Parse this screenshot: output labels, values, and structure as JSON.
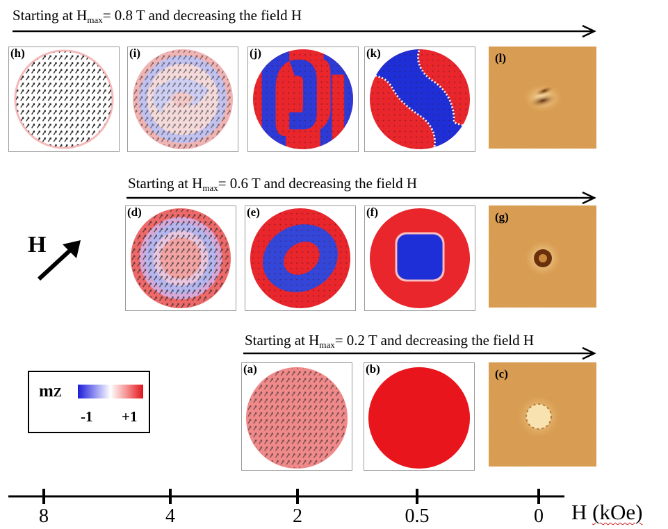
{
  "rows": [
    {
      "caption_pre": "Starting at H",
      "caption_sub": "max",
      "caption_post": "= 0.8 T and decreasing  the field H"
    },
    {
      "caption_pre": "Starting at H",
      "caption_sub": "max",
      "caption_post": "= 0.6 T and decreasing  the field H"
    },
    {
      "caption_pre": "Starting at H",
      "caption_sub": "max",
      "caption_post": "= 0.2 T and decreasing  the field H"
    }
  ],
  "panels": {
    "h": {
      "label": "(h)",
      "pattern": "saturated-inplane",
      "colors": [
        "#ffffff",
        "#f6b8b8"
      ]
    },
    "i": {
      "label": "(i)",
      "pattern": "spiral-pale",
      "colors": [
        "#c8c8f2",
        "#f2c6c6",
        "#ffffff"
      ]
    },
    "j": {
      "label": "(j)",
      "pattern": "s-stripe",
      "colors": [
        "#e8262c",
        "#2e3ad6"
      ]
    },
    "k": {
      "label": "(k)",
      "pattern": "wavy-band",
      "colors": [
        "#e8262c",
        "#1f2fd8"
      ]
    },
    "l": {
      "label": "(l)",
      "pattern": "mfm-photo-stripe"
    },
    "d": {
      "label": "(d)",
      "pattern": "concentric-pale",
      "colors": [
        "#ee6a6a",
        "#b6b6ee",
        "#f2a4a4"
      ]
    },
    "e": {
      "label": "(e)",
      "pattern": "concentric-ring",
      "colors": [
        "#e8262c",
        "#3446d8"
      ]
    },
    "f": {
      "label": "(f)",
      "pattern": "square-core",
      "colors": [
        "#e8262c",
        "#1f2fd8"
      ]
    },
    "g": {
      "label": "(g)",
      "pattern": "mfm-photo-ring"
    },
    "a": {
      "label": "(a)",
      "pattern": "uniform-pale",
      "colors": [
        "#f08a8a"
      ]
    },
    "b": {
      "label": "(b)",
      "pattern": "uniform-red",
      "colors": [
        "#e8161c"
      ]
    },
    "c": {
      "label": "(c)",
      "pattern": "mfm-photo-bright"
    }
  },
  "legend": {
    "title": "m",
    "title_sub": "Z",
    "min_label": "-1",
    "max_label": "+1",
    "gradient_colors": [
      "#1c1cd8",
      "#ffffff",
      "#e0141c"
    ]
  },
  "field_direction": {
    "label": "H"
  },
  "axis": {
    "ticks": [
      {
        "label": "8"
      },
      {
        "label": "4"
      },
      {
        "label": "2"
      },
      {
        "label": "0.5"
      },
      {
        "label": "0"
      }
    ],
    "title_pre": "H ",
    "title_unit": "(kOe)"
  }
}
